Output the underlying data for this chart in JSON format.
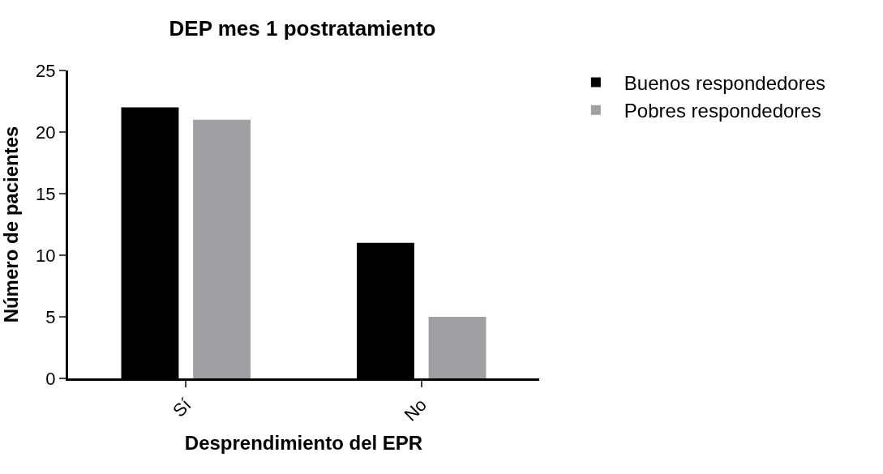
{
  "chart_data": {
    "type": "bar",
    "title": "DEP mes 1 postratamiento",
    "xlabel": "Desprendimiento del EPR",
    "ylabel": "Número de pacientes",
    "categories": [
      "Sí",
      "No"
    ],
    "series": [
      {
        "name": "Buenos respondedores",
        "color": "#000000",
        "values": [
          22,
          11
        ]
      },
      {
        "name": "Pobres respondedores",
        "color": "#a0a0a4",
        "values": [
          21,
          5
        ]
      }
    ],
    "ylim": [
      0,
      25
    ],
    "yticks": [
      0,
      5,
      10,
      15,
      20,
      25
    ],
    "legend": "top right"
  }
}
